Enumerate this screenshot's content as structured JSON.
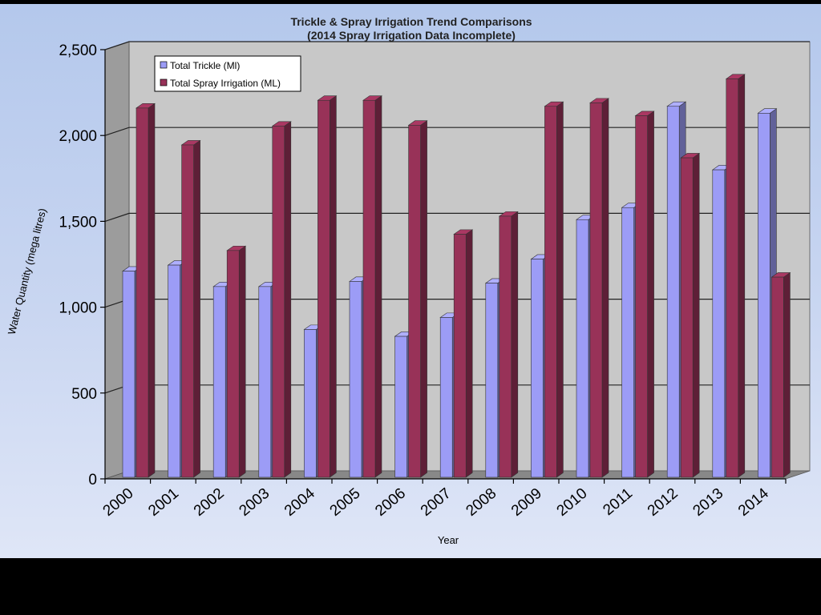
{
  "chart_data": {
    "type": "bar",
    "title": "Trickle & Spray Irrigation Trend Comparisons",
    "subtitle": "(2014 Spray Irrigation Data  Incomplete)",
    "xlabel": "Year",
    "ylabel": "Water Quantity (mega litres)",
    "ylim": [
      0,
      2500
    ],
    "yticks": [
      "0",
      "500",
      "1,000",
      "1,500",
      "2,000",
      "2,500"
    ],
    "ytick_values": [
      0,
      500,
      1000,
      1500,
      2000,
      2500
    ],
    "grid": true,
    "legend_position": "top-left",
    "categories": [
      "2000",
      "2001",
      "2002",
      "2003",
      "2004",
      "2005",
      "2006",
      "2007",
      "2008",
      "2009",
      "2010",
      "2011",
      "2012",
      "2013",
      "2014"
    ],
    "series": [
      {
        "name": "Total Trickle (Ml)",
        "color": "#9c9cf6",
        "values": [
          1210,
          1245,
          1120,
          1120,
          870,
          1150,
          830,
          940,
          1140,
          1280,
          1510,
          1580,
          2170,
          1800,
          2130
        ]
      },
      {
        "name": "Total Spray Irrigation (ML)",
        "color": "#983258",
        "values": [
          2160,
          1945,
          1330,
          2055,
          2205,
          2205,
          2060,
          1425,
          1530,
          2170,
          2190,
          2115,
          1870,
          2330,
          1175
        ]
      }
    ]
  },
  "colors": {
    "plot_back": "#c8c8c8",
    "plot_side": "#9c9c9c",
    "plot_floor": "#888888",
    "grid": "#222222"
  }
}
